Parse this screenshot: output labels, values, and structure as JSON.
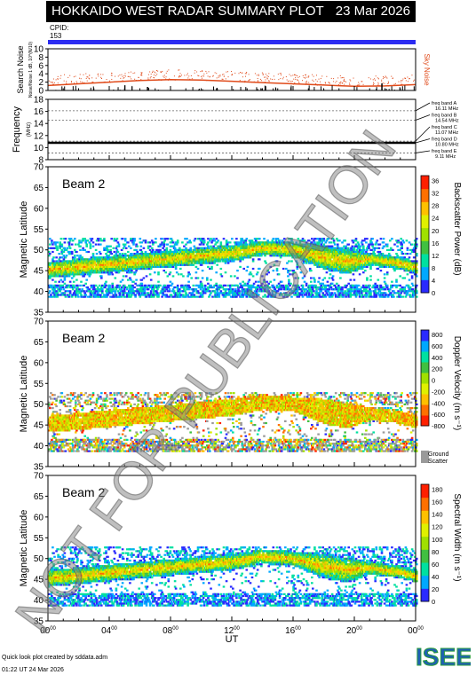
{
  "header": {
    "title": "HOKKAIDO WEST RADAR SUMMARY PLOT",
    "date": "23 Mar 2026",
    "cpid_label": "CPID:",
    "cpid_value": "153"
  },
  "footer": {
    "credit": "Quick look plot created by sddata.adm",
    "timestamp": "01:22 UT 24 Mar 2026",
    "logo": "ISEE",
    "logo_colors": [
      "#2a9d3c",
      "#1f5fb4"
    ]
  },
  "watermark": "NOT FOR PUBLICATION",
  "chart_data": [
    {
      "type": "line",
      "panel": "search-noise",
      "ylabel": "Search Noise",
      "ylabel_sub": "Noise/Noise 1 dB, 10^(N/10)",
      "ylim": [
        0,
        10
      ],
      "yticks": [
        0,
        2,
        4,
        6,
        8,
        10
      ],
      "series": [
        {
          "name": "Sky Noise",
          "color": "#e04a1a",
          "x": [
            0,
            2,
            4,
            6,
            8,
            10,
            12,
            14,
            16,
            18,
            20,
            22,
            24
          ],
          "y": [
            1.2,
            1.6,
            2.0,
            2.4,
            2.6,
            2.5,
            2.2,
            1.9,
            1.6,
            1.3,
            1.0,
            1.1,
            1.4
          ]
        }
      ]
    },
    {
      "type": "line",
      "panel": "frequency",
      "ylabel": "Frequency",
      "ylabel_sub": "(MHz)",
      "ylim": [
        8,
        18
      ],
      "yticks": [
        8,
        10,
        12,
        14,
        16,
        18
      ],
      "freq_bands": [
        {
          "label": "freq band A",
          "value": "16.11 MHz",
          "mhz": 16.11
        },
        {
          "label": "freq band B",
          "value": "14.54 MHz",
          "mhz": 14.54
        },
        {
          "label": "freq band C",
          "value": "11.07 MHz",
          "mhz": 11.07
        },
        {
          "label": "freq band D",
          "value": "10.80 MHz",
          "mhz": 10.8
        },
        {
          "label": "freq band E",
          "value": "9.11 MHz",
          "mhz": 9.11
        }
      ],
      "series": [
        {
          "name": "operating frequency",
          "color": "#000000",
          "x": [
            0,
            24
          ],
          "y": [
            10.8,
            10.8
          ]
        }
      ]
    },
    {
      "type": "heatmap",
      "panel": "power",
      "beam": "Beam  2",
      "ylabel": "Magnetic Latitude",
      "ylim": [
        35,
        70
      ],
      "yticks": [
        35,
        40,
        45,
        50,
        55,
        60,
        65,
        70
      ],
      "colorbar_label": "Backscatter Power (dB)",
      "colorbar_ticks": [
        "0",
        "4",
        "8",
        "12",
        "16",
        "20",
        "24",
        "28",
        "32",
        "36"
      ],
      "colorbar_colors": [
        "#2a2aff",
        "#00a8ff",
        "#00e0a0",
        "#40c040",
        "#a0e000",
        "#e0f000",
        "#ffc000",
        "#ff7000",
        "#ff2000"
      ],
      "echo_band": {
        "t": [
          0,
          3,
          6,
          9,
          12,
          14,
          16,
          18,
          19.5,
          21,
          23,
          24
        ],
        "lat_low": [
          43,
          44,
          45,
          46,
          47,
          48.5,
          48,
          45,
          44,
          46,
          45,
          44
        ],
        "lat_high": [
          47,
          48,
          49,
          50,
          51,
          52,
          51.5,
          51,
          50,
          49,
          48,
          47
        ]
      }
    },
    {
      "type": "heatmap",
      "panel": "velocity",
      "beam": "Beam  2",
      "ylabel": "Magnetic Latitude",
      "ylim": [
        35,
        70
      ],
      "yticks": [
        35,
        40,
        45,
        50,
        55,
        60,
        65,
        70
      ],
      "colorbar_label": "Doppler Velocity (m s⁻¹)",
      "colorbar_ticks": [
        "-800",
        "-600",
        "-400",
        "-200",
        "0",
        "200",
        "400",
        "600",
        "800"
      ],
      "colorbar_colors": [
        "#ff2000",
        "#ff7000",
        "#ffc000",
        "#e0f000",
        "#a0e000",
        "#40c040",
        "#00e0a0",
        "#00a8ff",
        "#2a2aff"
      ],
      "ground_scatter_label": [
        "Ground",
        "Scatter"
      ],
      "ground_scatter_color": "#9a9a9a",
      "echo_band": {
        "t": [
          0,
          3,
          6,
          9,
          12,
          14,
          16,
          18,
          19.5,
          21,
          23,
          24
        ],
        "lat_low": [
          43,
          44,
          45,
          46,
          47,
          48.5,
          48,
          45,
          44,
          46,
          45,
          44
        ],
        "lat_high": [
          47,
          48,
          49,
          50,
          51,
          52,
          51.5,
          51,
          50,
          49,
          48,
          47
        ]
      }
    },
    {
      "type": "heatmap",
      "panel": "width",
      "beam": "Beam  2",
      "ylabel": "Magnetic Latitude",
      "ylim": [
        35,
        70
      ],
      "yticks": [
        35,
        40,
        45,
        50,
        55,
        60,
        65,
        70
      ],
      "colorbar_label": "Spectral Width (m s⁻¹)",
      "colorbar_ticks": [
        "0",
        "20",
        "40",
        "60",
        "80",
        "100",
        "120",
        "140",
        "160",
        "180"
      ],
      "colorbar_colors": [
        "#2a2aff",
        "#00a8ff",
        "#00e0a0",
        "#40c040",
        "#a0e000",
        "#e0f000",
        "#ffc000",
        "#ff7000",
        "#ff2000"
      ],
      "echo_band": {
        "t": [
          0,
          3,
          6,
          9,
          12,
          14,
          16,
          18,
          19.5,
          21,
          23,
          24
        ],
        "lat_low": [
          43,
          44,
          45,
          46,
          47,
          48.5,
          48,
          45,
          44,
          46,
          45,
          44
        ],
        "lat_high": [
          47,
          48,
          49,
          50,
          51,
          52,
          51.5,
          51,
          50,
          49,
          48,
          47
        ]
      }
    }
  ],
  "xaxis": {
    "label": "UT",
    "ticks": [
      "00",
      "04",
      "08",
      "12",
      "16",
      "20",
      "00"
    ],
    "tick_sup": "00",
    "xlim": [
      0,
      24
    ]
  }
}
